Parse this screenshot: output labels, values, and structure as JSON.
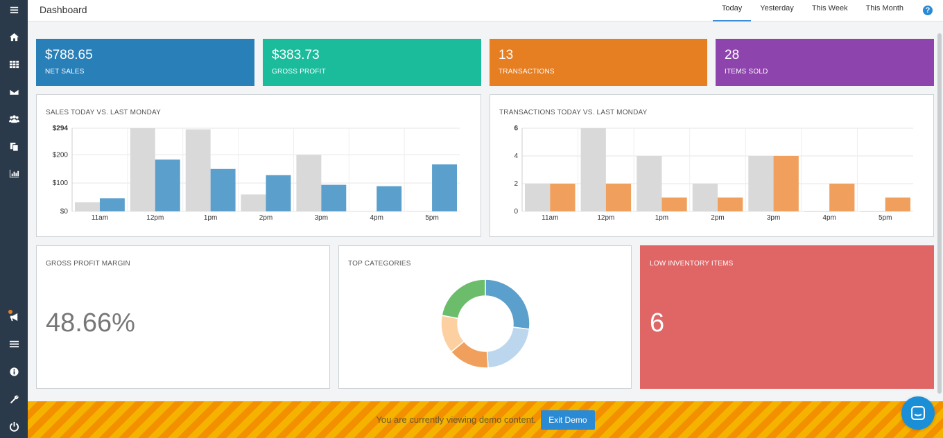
{
  "header": {
    "title": "Dashboard",
    "tabs": [
      {
        "label": "Today",
        "active": true
      },
      {
        "label": "Yesterday",
        "active": false
      },
      {
        "label": "This Week",
        "active": false
      },
      {
        "label": "This Month",
        "active": false
      }
    ],
    "help_glyph": "?"
  },
  "sidebar": {
    "items": [
      "menu-icon",
      "home-icon",
      "grid-icon",
      "envelope-icon",
      "users-icon",
      "files-icon",
      "bar-chart-icon",
      "megaphone-icon",
      "list-icon",
      "info-icon",
      "wrench-icon",
      "power-icon"
    ]
  },
  "stats": [
    {
      "value": "$788.65",
      "label": "NET SALES",
      "color": "#2980b9"
    },
    {
      "value": "$383.73",
      "label": "GROSS PROFIT",
      "color": "#1abc9c"
    },
    {
      "value": "13",
      "label": "TRANSACTIONS",
      "color": "#e67e22"
    },
    {
      "value": "28",
      "label": "ITEMS SOLD",
      "color": "#8e44ad"
    }
  ],
  "panels": {
    "gross_margin": {
      "title": "GROSS PROFIT MARGIN",
      "value": "48.66%"
    },
    "top_categories": {
      "title": "TOP CATEGORIES"
    },
    "low_inventory": {
      "title": "LOW INVENTORY ITEMS",
      "value": "6",
      "color": "#e06666"
    }
  },
  "chart_data": [
    {
      "type": "bar",
      "title": "SALES TODAY VS. LAST MONDAY",
      "categories": [
        "11am",
        "12pm",
        "1pm",
        "2pm",
        "3pm",
        "4pm",
        "5pm"
      ],
      "series": [
        {
          "values": [
            32,
            294,
            290,
            60,
            200,
            1,
            1
          ],
          "color": "#d9d9d9"
        },
        {
          "values": [
            46,
            183,
            150,
            128,
            94,
            89,
            166
          ],
          "color": "#5b9fcc"
        }
      ],
      "ylim": [
        0,
        294
      ],
      "yticks": [
        {
          "value": 294,
          "label": "$294"
        },
        {
          "value": 200,
          "label": "$200"
        },
        {
          "value": 100,
          "label": "$100"
        },
        {
          "value": 0,
          "label": "$0"
        }
      ],
      "grid": true
    },
    {
      "type": "bar",
      "title": "TRANSACTIONS TODAY VS. LAST MONDAY",
      "categories": [
        "11am",
        "12pm",
        "1pm",
        "2pm",
        "3pm",
        "4pm",
        "5pm"
      ],
      "series": [
        {
          "values": [
            2,
            6,
            4,
            2,
            4,
            0,
            0
          ],
          "color": "#d9d9d9"
        },
        {
          "values": [
            2,
            2,
            1,
            1,
            4,
            2,
            1
          ],
          "color": "#f0a05c"
        }
      ],
      "ylim": [
        0,
        6
      ],
      "yticks": [
        {
          "value": 6,
          "label": "6"
        },
        {
          "value": 4,
          "label": "4"
        },
        {
          "value": 2,
          "label": "2"
        },
        {
          "value": 0,
          "label": "0"
        }
      ],
      "grid": true
    },
    {
      "type": "pie",
      "donut": true,
      "values": [
        27,
        22,
        15,
        14,
        22
      ],
      "colors": [
        "#5b9fcc",
        "#bcd6ee",
        "#f0a05c",
        "#fdd0a2",
        "#6bbd6b"
      ]
    }
  ],
  "demo": {
    "text": "You are currently viewing demo content.",
    "button": "Exit Demo"
  }
}
